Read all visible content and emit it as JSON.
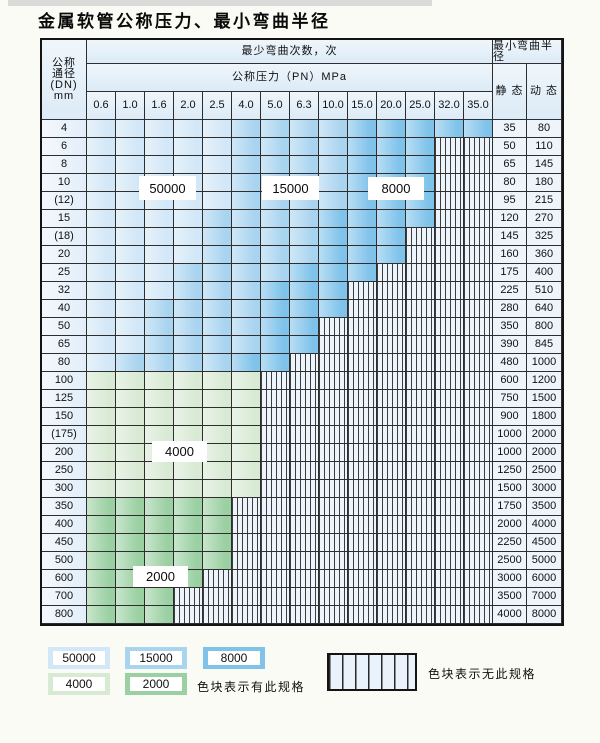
{
  "title": "金属软管公称压力、最小弯曲半径",
  "table": {
    "corner_header": "公称\n通径\n(DN)\nmm",
    "bend_cycles_header": "最少弯曲次数，次",
    "pressure_header": "公称压力（PN）MPa",
    "radius_header": "最小弯曲半径",
    "static_header": "静 态",
    "dynamic_header": "动 态",
    "pressure_columns": [
      "0.6",
      "1.0",
      "1.6",
      "2.0",
      "2.5",
      "4.0",
      "5.0",
      "6.3",
      "10.0",
      "15.0",
      "20.0",
      "25.0",
      "32.0",
      "35.0"
    ],
    "rows": [
      {
        "dn": "4",
        "static": "35",
        "dynamic": "80",
        "region": "blue",
        "last": 13,
        "med": 5,
        "dark": 9
      },
      {
        "dn": "6",
        "static": "50",
        "dynamic": "110",
        "region": "blue",
        "last": 11,
        "med": 5,
        "dark": 9
      },
      {
        "dn": "8",
        "static": "65",
        "dynamic": "145",
        "region": "blue",
        "last": 11,
        "med": 5,
        "dark": 9
      },
      {
        "dn": "10",
        "static": "80",
        "dynamic": "180",
        "region": "blue",
        "last": 11,
        "med": 5,
        "dark": 9
      },
      {
        "dn": "(12)",
        "static": "95",
        "dynamic": "215",
        "region": "blue",
        "last": 11,
        "med": 5,
        "dark": 9
      },
      {
        "dn": "15",
        "static": "120",
        "dynamic": "270",
        "region": "blue",
        "last": 11,
        "med": 4,
        "dark": 8
      },
      {
        "dn": "(18)",
        "static": "145",
        "dynamic": "325",
        "region": "blue",
        "last": 10,
        "med": 4,
        "dark": 8
      },
      {
        "dn": "20",
        "static": "160",
        "dynamic": "360",
        "region": "blue",
        "last": 10,
        "med": 4,
        "dark": 8
      },
      {
        "dn": "25",
        "static": "175",
        "dynamic": "400",
        "region": "blue",
        "last": 9,
        "med": 3,
        "dark": 7
      },
      {
        "dn": "32",
        "static": "225",
        "dynamic": "510",
        "region": "blue",
        "last": 8,
        "med": 3,
        "dark": 6
      },
      {
        "dn": "40",
        "static": "280",
        "dynamic": "640",
        "region": "blue",
        "last": 8,
        "med": 2,
        "dark": 6
      },
      {
        "dn": "50",
        "static": "350",
        "dynamic": "800",
        "region": "blue",
        "last": 7,
        "med": 2,
        "dark": 6
      },
      {
        "dn": "65",
        "static": "390",
        "dynamic": "845",
        "region": "blue",
        "last": 7,
        "med": 2,
        "dark": 6
      },
      {
        "dn": "80",
        "static": "480",
        "dynamic": "1000",
        "region": "blue",
        "last": 6,
        "med": 1,
        "dark": 5
      },
      {
        "dn": "100",
        "static": "600",
        "dynamic": "1200",
        "region": "g4000",
        "last": 5
      },
      {
        "dn": "125",
        "static": "750",
        "dynamic": "1500",
        "region": "g4000",
        "last": 5
      },
      {
        "dn": "150",
        "static": "900",
        "dynamic": "1800",
        "region": "g4000",
        "last": 5
      },
      {
        "dn": "(175)",
        "static": "1000",
        "dynamic": "2000",
        "region": "g4000",
        "last": 5
      },
      {
        "dn": "200",
        "static": "1000",
        "dynamic": "2000",
        "region": "g4000",
        "last": 5
      },
      {
        "dn": "250",
        "static": "1250",
        "dynamic": "2500",
        "region": "g4000",
        "last": 5
      },
      {
        "dn": "300",
        "static": "1500",
        "dynamic": "3000",
        "region": "g4000",
        "last": 5
      },
      {
        "dn": "350",
        "static": "1750",
        "dynamic": "3500",
        "region": "g2000",
        "last": 4
      },
      {
        "dn": "400",
        "static": "2000",
        "dynamic": "4000",
        "region": "g2000",
        "last": 4
      },
      {
        "dn": "450",
        "static": "2250",
        "dynamic": "4500",
        "region": "g2000",
        "last": 4
      },
      {
        "dn": "500",
        "static": "2500",
        "dynamic": "5000",
        "region": "g2000",
        "last": 4
      },
      {
        "dn": "600",
        "static": "3000",
        "dynamic": "6000",
        "region": "g2000",
        "last": 3
      },
      {
        "dn": "700",
        "static": "3500",
        "dynamic": "7000",
        "region": "g2000",
        "last": 2
      },
      {
        "dn": "800",
        "static": "4000",
        "dynamic": "8000",
        "region": "g2000",
        "last": 2
      }
    ]
  },
  "region_labels": {
    "l50000": "50000",
    "l15000": "15000",
    "l8000": "8000",
    "l4000": "4000",
    "l2000": "2000"
  },
  "legend": {
    "swatches": [
      {
        "label": "50000",
        "color_key": "c50000"
      },
      {
        "label": "15000",
        "color_key": "c15000"
      },
      {
        "label": "8000",
        "color_key": "c8000"
      },
      {
        "label": "4000",
        "color_key": "c4000"
      },
      {
        "label": "2000",
        "color_key": "c2000"
      }
    ],
    "has_spec_text": "色块表示有此规格",
    "no_spec_text": "色块表示无此规格"
  },
  "colors": {
    "c50000": "#d2e7f7",
    "c15000": "#a9d4f0",
    "c8000": "#7fc3eb",
    "c4000": "#d8ead4",
    "c2000": "#9bd0a2",
    "striped_bg": "#edf4fb",
    "header_bg": "#e6f0f9",
    "grid_line": "#2e2e2e"
  }
}
